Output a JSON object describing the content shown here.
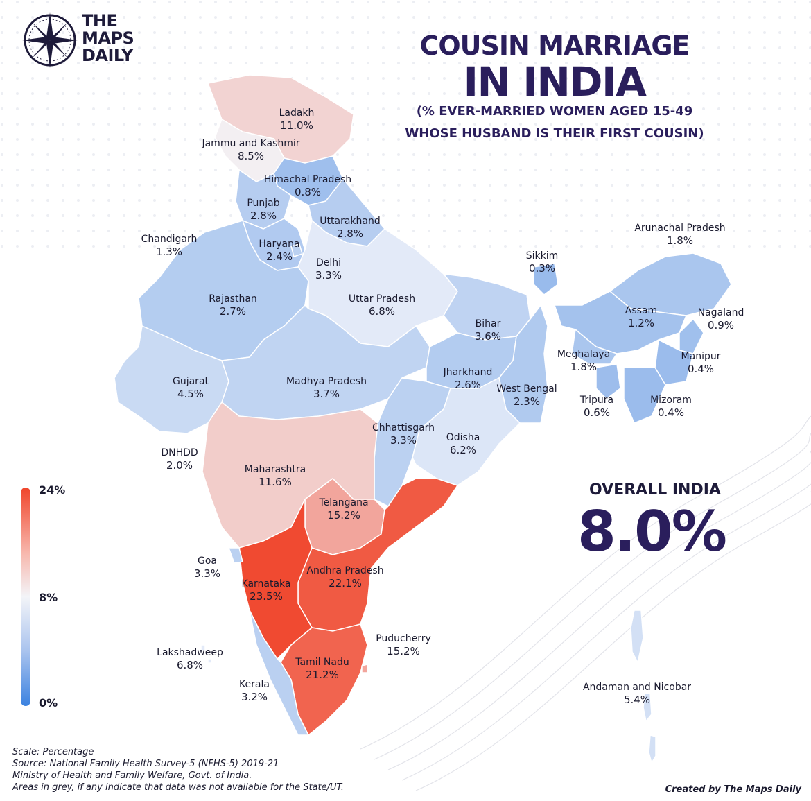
{
  "brand": {
    "line1": "THE",
    "line2": "MAPS",
    "line3": "DAILY"
  },
  "title": {
    "line1": "COUSIN MARRIAGE",
    "line2": "IN INDIA",
    "line3": "(% EVER-MARRIED WOMEN AGED 15-49",
    "line4": "WHOSE HUSBAND IS THEIR FIRST COUSIN)"
  },
  "overall": {
    "label": "OVERALL INDIA",
    "value": "8.0%",
    "value_num": 8.0
  },
  "legend": {
    "max": "24%",
    "mid": "8%",
    "min": "0%",
    "max_num": 24,
    "mid_num": 8,
    "min_num": 0,
    "colors": {
      "high": "#f0452b",
      "mid": "#f3f4f8",
      "low": "#3b82e0"
    }
  },
  "regions": [
    {
      "name": "Ladakh",
      "value": "11.0%",
      "num": 11.0
    },
    {
      "name": "Jammu and Kashmir",
      "value": "8.5%",
      "num": 8.5
    },
    {
      "name": "Himachal Pradesh",
      "value": "0.8%",
      "num": 0.8
    },
    {
      "name": "Punjab",
      "value": "2.8%",
      "num": 2.8
    },
    {
      "name": "Uttarakhand",
      "value": "2.8%",
      "num": 2.8
    },
    {
      "name": "Chandigarh",
      "value": "1.3%",
      "num": 1.3
    },
    {
      "name": "Haryana",
      "value": "2.4%",
      "num": 2.4
    },
    {
      "name": "Delhi",
      "value": "3.3%",
      "num": 3.3
    },
    {
      "name": "Rajasthan",
      "value": "2.7%",
      "num": 2.7
    },
    {
      "name": "Uttar Pradesh",
      "value": "6.8%",
      "num": 6.8
    },
    {
      "name": "Bihar",
      "value": "3.6%",
      "num": 3.6
    },
    {
      "name": "Gujarat",
      "value": "4.5%",
      "num": 4.5
    },
    {
      "name": "Madhya Pradesh",
      "value": "3.7%",
      "num": 3.7
    },
    {
      "name": "Jharkhand",
      "value": "2.6%",
      "num": 2.6
    },
    {
      "name": "West Bengal",
      "value": "2.3%",
      "num": 2.3
    },
    {
      "name": "Chhattisgarh",
      "value": "3.3%",
      "num": 3.3
    },
    {
      "name": "Odisha",
      "value": "6.2%",
      "num": 6.2
    },
    {
      "name": "DNHDD",
      "value": "2.0%",
      "num": 2.0
    },
    {
      "name": "Maharashtra",
      "value": "11.6%",
      "num": 11.6
    },
    {
      "name": "Telangana",
      "value": "15.2%",
      "num": 15.2
    },
    {
      "name": "Goa",
      "value": "3.3%",
      "num": 3.3
    },
    {
      "name": "Andhra Pradesh",
      "value": "22.1%",
      "num": 22.1
    },
    {
      "name": "Karnataka",
      "value": "23.5%",
      "num": 23.5
    },
    {
      "name": "Puducherry",
      "value": "15.2%",
      "num": 15.2
    },
    {
      "name": "Lakshadweep",
      "value": "6.8%",
      "num": 6.8
    },
    {
      "name": "Tamil Nadu",
      "value": "21.2%",
      "num": 21.2
    },
    {
      "name": "Kerala",
      "value": "3.2%",
      "num": 3.2
    },
    {
      "name": "Arunachal Pradesh",
      "value": "1.8%",
      "num": 1.8
    },
    {
      "name": "Sikkim",
      "value": "0.3%",
      "num": 0.3
    },
    {
      "name": "Assam",
      "value": "1.2%",
      "num": 1.2
    },
    {
      "name": "Nagaland",
      "value": "0.9%",
      "num": 0.9
    },
    {
      "name": "Meghalaya",
      "value": "1.8%",
      "num": 1.8
    },
    {
      "name": "Manipur",
      "value": "0.4%",
      "num": 0.4
    },
    {
      "name": "Tripura",
      "value": "0.6%",
      "num": 0.6
    },
    {
      "name": "Mizoram",
      "value": "0.4%",
      "num": 0.4
    },
    {
      "name": "Andaman and Nicobar",
      "value": "5.4%",
      "num": 5.4
    }
  ],
  "footer": {
    "line1": "Scale: Percentage",
    "line2": "Source: National Family Health Survey-5 (NFHS-5) 2019-21",
    "line3": "Ministry of Health and Family Welfare, Govt. of India.",
    "line4": "Areas in grey, if any indicate that data was not available for the State/UT.",
    "credit": "Created by The Maps Daily"
  }
}
